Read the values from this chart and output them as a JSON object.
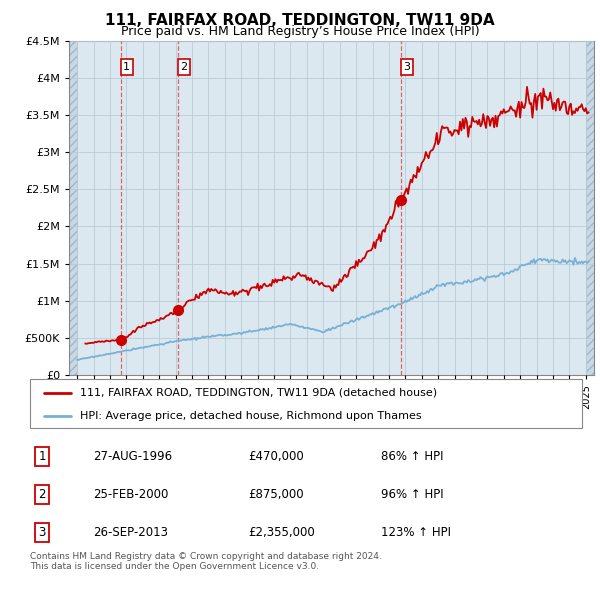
{
  "title": "111, FAIRFAX ROAD, TEDDINGTON, TW11 9DA",
  "subtitle": "Price paid vs. HM Land Registry’s House Price Index (HPI)",
  "sales": [
    {
      "date_num": 1996.66,
      "price": 470000,
      "label": "1"
    },
    {
      "date_num": 2000.15,
      "price": 875000,
      "label": "2"
    },
    {
      "date_num": 2013.73,
      "price": 2355000,
      "label": "3"
    }
  ],
  "table_rows": [
    {
      "num": "1",
      "date": "27-AUG-1996",
      "price": "£470,000",
      "hpi": "86% ↑ HPI"
    },
    {
      "num": "2",
      "date": "25-FEB-2000",
      "price": "£875,000",
      "hpi": "96% ↑ HPI"
    },
    {
      "num": "3",
      "date": "26-SEP-2013",
      "price": "£2,355,000",
      "hpi": "123% ↑ HPI"
    }
  ],
  "legend_line1": "111, FAIRFAX ROAD, TEDDINGTON, TW11 9DA (detached house)",
  "legend_line2": "HPI: Average price, detached house, Richmond upon Thames",
  "footer1": "Contains HM Land Registry data © Crown copyright and database right 2024.",
  "footer2": "This data is licensed under the Open Government Licence v3.0.",
  "red_color": "#cc0000",
  "blue_color": "#7ab0d4",
  "bg_color": "#dce8f0",
  "hatch_color": "#c8d8e4",
  "grid_color": "#b8ccd8",
  "ylim": [
    0,
    4500000
  ],
  "xlim": [
    1993.5,
    2025.5
  ],
  "hatch_xlim": 1994.0
}
